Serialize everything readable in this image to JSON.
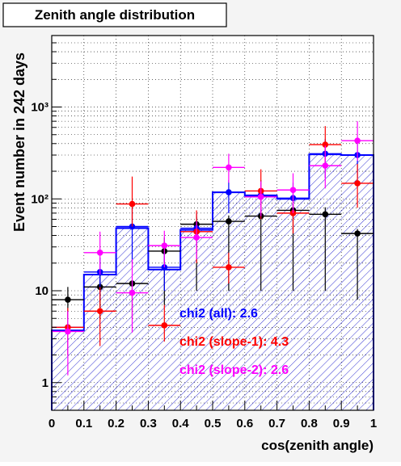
{
  "chart_data": {
    "type": "histogram",
    "title": "Zenith angle distribution",
    "xlabel": "cos(zenith angle)",
    "ylabel": "Event number in 242 days",
    "x_ticks": [
      "0",
      "0.1",
      "0.2",
      "0.3",
      "0.4",
      "0.5",
      "0.6",
      "0.7",
      "0.8",
      "0.9",
      "1"
    ],
    "y_ticks": [
      "1",
      "10",
      "10²",
      "10³"
    ],
    "xlim": [
      0,
      1
    ],
    "ylim_log": [
      0.5,
      6000
    ],
    "ylog": true,
    "bins": [
      0.05,
      0.15,
      0.25,
      0.35,
      0.45,
      0.55,
      0.65,
      0.75,
      0.85,
      0.95
    ],
    "histogram": {
      "color": "#0000ff",
      "values": [
        3.7,
        15,
        48,
        17,
        46,
        118,
        108,
        100,
        305,
        300
      ]
    },
    "series": [
      {
        "color": "#000000",
        "values": [
          8,
          11,
          12,
          27,
          53,
          57,
          65,
          75,
          68,
          42
        ],
        "err_lo": [
          5,
          5,
          5,
          7,
          10,
          10,
          10,
          10,
          10,
          8
        ],
        "err_hi": [
          11,
          17,
          13,
          38,
          64,
          66,
          76,
          88,
          81,
          47
        ]
      },
      {
        "color": "#0000ff",
        "values": [
          4,
          16,
          50,
          18,
          48,
          118,
          110,
          102,
          310,
          300
        ],
        "err_lo": [
          2,
          8,
          20,
          10,
          30,
          70,
          60,
          60,
          170,
          170
        ],
        "err_hi": [
          6,
          23,
          80,
          26,
          70,
          160,
          160,
          150,
          450,
          450
        ]
      },
      {
        "color": "#ff0000",
        "values": [
          4,
          6,
          88,
          4.2,
          44,
          18,
          122,
          70,
          390,
          148
        ],
        "err_lo": [
          2,
          2.5,
          50,
          2.8,
          20,
          12,
          60,
          42,
          230,
          80
        ],
        "err_hi": [
          6.5,
          11,
          175,
          7,
          75,
          26,
          210,
          100,
          620,
          240
        ]
      },
      {
        "color": "#ff00ff",
        "values": [
          3.6,
          26,
          9.5,
          31,
          38,
          220,
          105,
          125,
          230,
          430
        ],
        "err_lo": [
          1.2,
          15,
          3.5,
          18,
          22,
          150,
          65,
          70,
          130,
          260
        ],
        "err_hi": [
          6,
          44,
          22,
          45,
          57,
          310,
          155,
          190,
          380,
          700
        ]
      }
    ],
    "annotations": [
      {
        "text": "chi2 (all): 2.6",
        "color": "#0000ff"
      },
      {
        "text": "chi2 (slope-1): 4.3",
        "color": "#ff0000"
      },
      {
        "text": "chi2 (slope-2): 2.6",
        "color": "#ff00ff"
      }
    ]
  }
}
